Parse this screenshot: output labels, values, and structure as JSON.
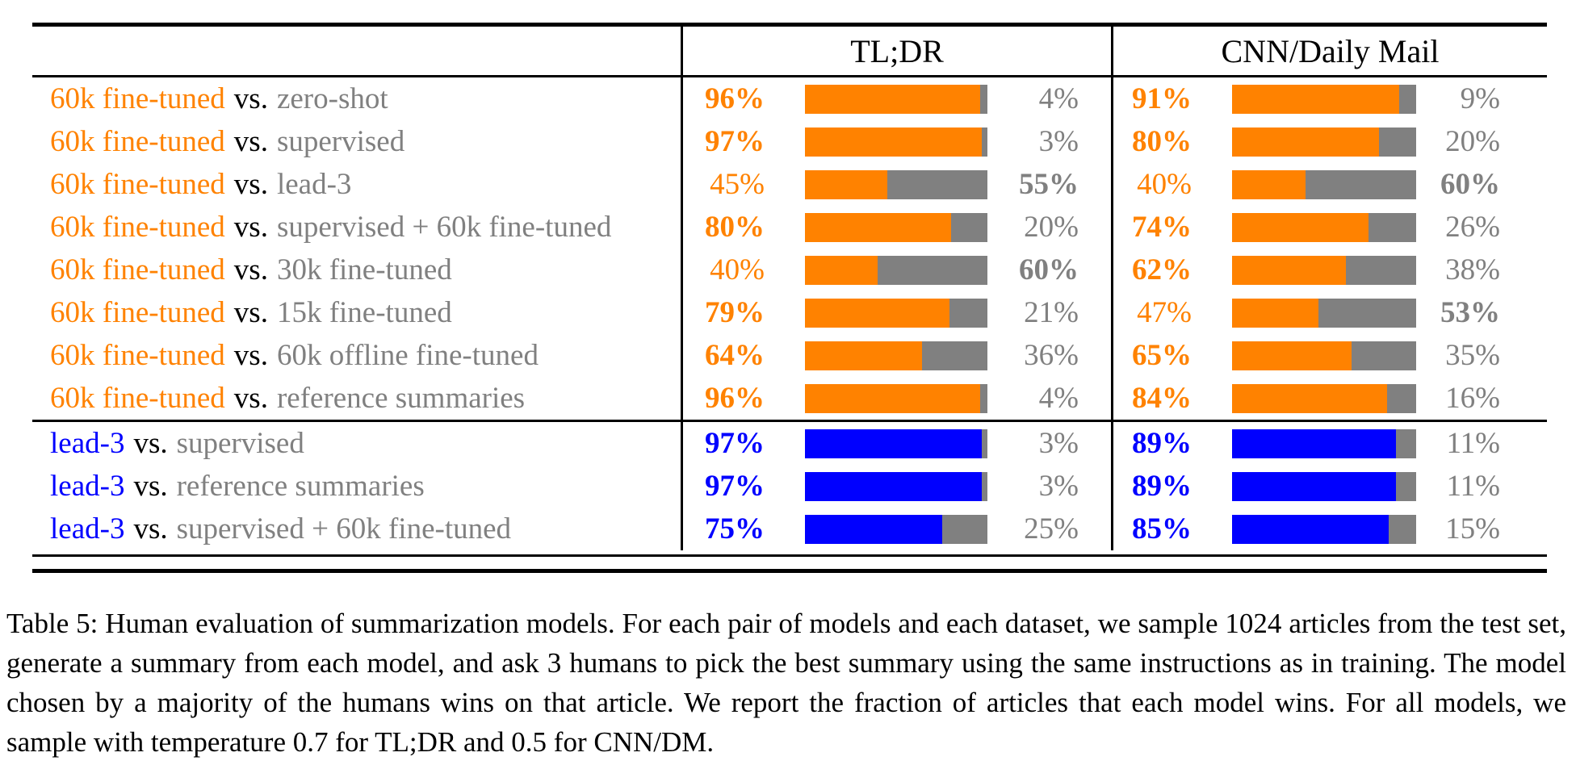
{
  "colors": {
    "winner_orange": "#ff8200",
    "winner_blue": "#0000ff",
    "loser_gray": "#808080",
    "rule_black": "#000000"
  },
  "header": {
    "datasets": [
      "TL;DR",
      "CNN/Daily Mail"
    ]
  },
  "sections": [
    {
      "color": "#ff8200",
      "rows": [
        {
          "left_model": "60k fine-tuned",
          "vs_label": "vs.",
          "right_model": "zero-shot",
          "cells": [
            {
              "win": 96,
              "win_label": "96%",
              "win_bold": true,
              "lose": 4,
              "lose_label": "4%",
              "lose_bold": false
            },
            {
              "win": 91,
              "win_label": "91%",
              "win_bold": true,
              "lose": 9,
              "lose_label": "9%",
              "lose_bold": false
            }
          ]
        },
        {
          "left_model": "60k fine-tuned",
          "vs_label": "vs.",
          "right_model": "supervised",
          "cells": [
            {
              "win": 97,
              "win_label": "97%",
              "win_bold": true,
              "lose": 3,
              "lose_label": "3%",
              "lose_bold": false
            },
            {
              "win": 80,
              "win_label": "80%",
              "win_bold": true,
              "lose": 20,
              "lose_label": "20%",
              "lose_bold": false
            }
          ]
        },
        {
          "left_model": "60k fine-tuned",
          "vs_label": "vs.",
          "right_model": "lead-3",
          "cells": [
            {
              "win": 45,
              "win_label": "45%",
              "win_bold": false,
              "lose": 55,
              "lose_label": "55%",
              "lose_bold": true
            },
            {
              "win": 40,
              "win_label": "40%",
              "win_bold": false,
              "lose": 60,
              "lose_label": "60%",
              "lose_bold": true
            }
          ]
        },
        {
          "left_model": "60k fine-tuned",
          "vs_label": "vs.",
          "right_model": "supervised + 60k fine-tuned",
          "cells": [
            {
              "win": 80,
              "win_label": "80%",
              "win_bold": true,
              "lose": 20,
              "lose_label": "20%",
              "lose_bold": false
            },
            {
              "win": 74,
              "win_label": "74%",
              "win_bold": true,
              "lose": 26,
              "lose_label": "26%",
              "lose_bold": false
            }
          ]
        },
        {
          "left_model": "60k fine-tuned",
          "vs_label": "vs.",
          "right_model": "30k fine-tuned",
          "cells": [
            {
              "win": 40,
              "win_label": "40%",
              "win_bold": false,
              "lose": 60,
              "lose_label": "60%",
              "lose_bold": true
            },
            {
              "win": 62,
              "win_label": "62%",
              "win_bold": true,
              "lose": 38,
              "lose_label": "38%",
              "lose_bold": false
            }
          ]
        },
        {
          "left_model": "60k fine-tuned",
          "vs_label": "vs.",
          "right_model": "15k fine-tuned",
          "cells": [
            {
              "win": 79,
              "win_label": "79%",
              "win_bold": true,
              "lose": 21,
              "lose_label": "21%",
              "lose_bold": false
            },
            {
              "win": 47,
              "win_label": "47%",
              "win_bold": false,
              "lose": 53,
              "lose_label": "53%",
              "lose_bold": true
            }
          ]
        },
        {
          "left_model": "60k fine-tuned",
          "vs_label": "vs.",
          "right_model": "60k offline fine-tuned",
          "cells": [
            {
              "win": 64,
              "win_label": "64%",
              "win_bold": true,
              "lose": 36,
              "lose_label": "36%",
              "lose_bold": false
            },
            {
              "win": 65,
              "win_label": "65%",
              "win_bold": true,
              "lose": 35,
              "lose_label": "35%",
              "lose_bold": false
            }
          ]
        },
        {
          "left_model": "60k fine-tuned",
          "vs_label": "vs.",
          "right_model": "reference summaries",
          "cells": [
            {
              "win": 96,
              "win_label": "96%",
              "win_bold": true,
              "lose": 4,
              "lose_label": "4%",
              "lose_bold": false
            },
            {
              "win": 84,
              "win_label": "84%",
              "win_bold": true,
              "lose": 16,
              "lose_label": "16%",
              "lose_bold": false
            }
          ]
        }
      ]
    },
    {
      "color": "#0000ff",
      "rows": [
        {
          "left_model": "lead-3",
          "vs_label": "vs.",
          "right_model": "supervised",
          "cells": [
            {
              "win": 97,
              "win_label": "97%",
              "win_bold": true,
              "lose": 3,
              "lose_label": "3%",
              "lose_bold": false
            },
            {
              "win": 89,
              "win_label": "89%",
              "win_bold": true,
              "lose": 11,
              "lose_label": "11%",
              "lose_bold": false
            }
          ]
        },
        {
          "left_model": "lead-3",
          "vs_label": "vs.",
          "right_model": "reference summaries",
          "cells": [
            {
              "win": 97,
              "win_label": "97%",
              "win_bold": true,
              "lose": 3,
              "lose_label": "3%",
              "lose_bold": false
            },
            {
              "win": 89,
              "win_label": "89%",
              "win_bold": true,
              "lose": 11,
              "lose_label": "11%",
              "lose_bold": false
            }
          ]
        },
        {
          "left_model": "lead-3",
          "vs_label": "vs.",
          "right_model": "supervised + 60k fine-tuned",
          "cells": [
            {
              "win": 75,
              "win_label": "75%",
              "win_bold": true,
              "lose": 25,
              "lose_label": "25%",
              "lose_bold": false
            },
            {
              "win": 85,
              "win_label": "85%",
              "win_bold": true,
              "lose": 15,
              "lose_label": "15%",
              "lose_bold": false
            }
          ]
        }
      ]
    }
  ],
  "caption": {
    "text": "Table 5: Human evaluation of summarization models. For each pair of models and each dataset, we sample 1024 articles from the test set, generate a summary from each model, and ask 3 humans to pick the best summary using the same instructions as in training. The model chosen by a majority of the humans wins on that article. We report the fraction of articles that each model wins. For all models, we sample with temperature 0.7 for TL;DR and 0.5 for CNN/DM."
  }
}
